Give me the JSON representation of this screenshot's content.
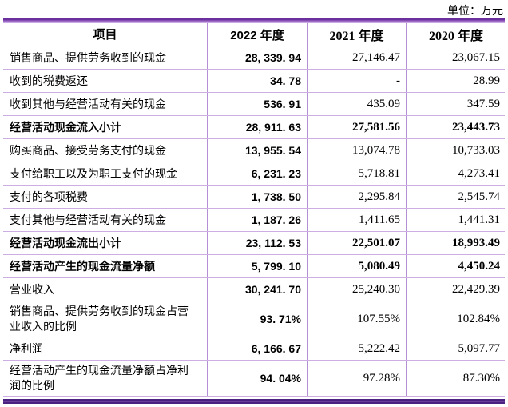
{
  "unit_label": "单位：万元",
  "colors": {
    "grid_line_horizontal": "#cdaee3",
    "grid_line_vertical": "#b48fd6",
    "top_bar_dark": "#6b2f9e",
    "top_bar_light": "#c7abe2",
    "bottom_bar_dark": "#4a2080",
    "text": "#000000"
  },
  "table": {
    "columns": [
      "项目",
      "2022 年度",
      "2021 年度",
      "2020 年度"
    ],
    "rows": [
      {
        "item": "销售商品、提供劳务收到的现金",
        "y2022": "28, 339. 94",
        "y2021": "27,146.47",
        "y2020": "23,067.15",
        "bold": false
      },
      {
        "item": "收到的税费返还",
        "y2022": "34. 78",
        "y2021": "-",
        "y2020": "28.99",
        "bold": false
      },
      {
        "item": "收到其他与经营活动有关的现金",
        "y2022": "536. 91",
        "y2021": "435.09",
        "y2020": "347.59",
        "bold": false
      },
      {
        "item": "经营活动现金流入小计",
        "y2022": "28, 911. 63",
        "y2021": "27,581.56",
        "y2020": "23,443.73",
        "bold": true
      },
      {
        "item": "购买商品、接受劳务支付的现金",
        "y2022": "13, 955. 54",
        "y2021": "13,074.78",
        "y2020": "10,733.03",
        "bold": false
      },
      {
        "item": "支付给职工以及为职工支付的现金",
        "y2022": "6, 231. 23",
        "y2021": "5,718.81",
        "y2020": "4,273.41",
        "bold": false
      },
      {
        "item": "支付的各项税费",
        "y2022": "1, 738. 50",
        "y2021": "2,295.84",
        "y2020": "2,545.74",
        "bold": false
      },
      {
        "item": "支付其他与经营活动有关的现金",
        "y2022": "1, 187. 26",
        "y2021": "1,411.65",
        "y2020": "1,441.31",
        "bold": false
      },
      {
        "item": "经营活动现金流出小计",
        "y2022": "23, 112. 53",
        "y2021": "22,501.07",
        "y2020": "18,993.49",
        "bold": true
      },
      {
        "item": "经营活动产生的现金流量净额",
        "y2022": "5, 799. 10",
        "y2021": "5,080.49",
        "y2020": "4,450.24",
        "bold": true
      },
      {
        "item": "营业收入",
        "y2022": "30, 241. 70",
        "y2021": "25,240.30",
        "y2020": "22,429.39",
        "bold": false
      },
      {
        "item": "销售商品、提供劳务收到的现金占营业收入的比例",
        "y2022": "93. 71%",
        "y2021": "107.55%",
        "y2020": "102.84%",
        "bold": false
      },
      {
        "item": "净利润",
        "y2022": "6, 166. 67",
        "y2021": "5,222.42",
        "y2020": "5,097.77",
        "bold": false
      },
      {
        "item": "经营活动产生的现金流量净额占净利润的比例",
        "y2022": "94. 04%",
        "y2021": "97.28%",
        "y2020": "87.30%",
        "bold": false
      }
    ]
  }
}
